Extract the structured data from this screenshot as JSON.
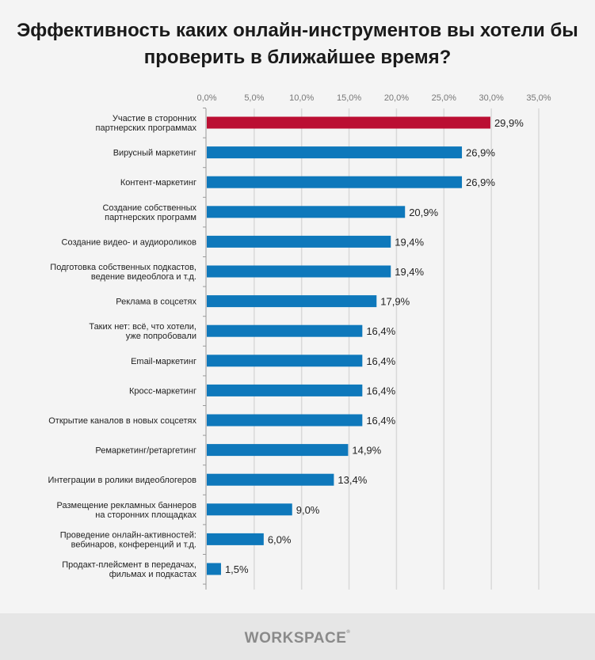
{
  "chart_data": {
    "type": "bar",
    "orientation": "horizontal",
    "title": "Эффективность каких онлайн-инструментов вы хотели бы проверить в ближайшее время?",
    "xlim": [
      0,
      35
    ],
    "x_ticks": [
      "0,0%",
      "5,0%",
      "10,0%",
      "15,0%",
      "20,0%",
      "25,0%",
      "30,0%",
      "35,0%"
    ],
    "grid": true,
    "categories": [
      [
        "Участие в сторонних",
        "партнерских программах"
      ],
      [
        "Вирусный маркетинг"
      ],
      [
        "Контент-маркетинг"
      ],
      [
        "Создание собственных",
        "партнерских программ"
      ],
      [
        "Создание видео- и аудиороликов"
      ],
      [
        "Подготовка собственных подкастов,",
        "ведение видеоблога и т.д."
      ],
      [
        "Реклама в соцсетях"
      ],
      [
        "Таких нет: всё, что хотели,",
        "уже попробовали"
      ],
      [
        "Email-маркетинг"
      ],
      [
        "Кросс-маркетинг"
      ],
      [
        "Открытие каналов в новых соцсетях"
      ],
      [
        "Ремаркетинг/ретаргетинг"
      ],
      [
        "Интеграции в ролики видеоблогеров"
      ],
      [
        "Размещение рекламных баннеров",
        "на сторонних площадках"
      ],
      [
        "Проведение онлайн-активностей:",
        "вебинаров, конференций и т.д."
      ],
      [
        "Продакт-плейсмент в передачах,",
        "фильмах и подкастах"
      ]
    ],
    "values": [
      29.9,
      26.9,
      26.9,
      20.9,
      19.4,
      19.4,
      17.9,
      16.4,
      16.4,
      16.4,
      16.4,
      14.9,
      13.4,
      9.0,
      6.0,
      1.5
    ],
    "data_labels": [
      "29,9%",
      "26,9%",
      "26,9%",
      "20,9%",
      "19,4%",
      "19,4%",
      "17,9%",
      "16,4%",
      "16,4%",
      "16,4%",
      "16,4%",
      "14,9%",
      "13,4%",
      "9,0%",
      "6,0%",
      "1,5%"
    ],
    "colors": {
      "highlight": "#bb0f33",
      "default": "#0e78bb"
    },
    "highlight_index": 0
  },
  "footer": {
    "logo": "WORKSPACE"
  }
}
